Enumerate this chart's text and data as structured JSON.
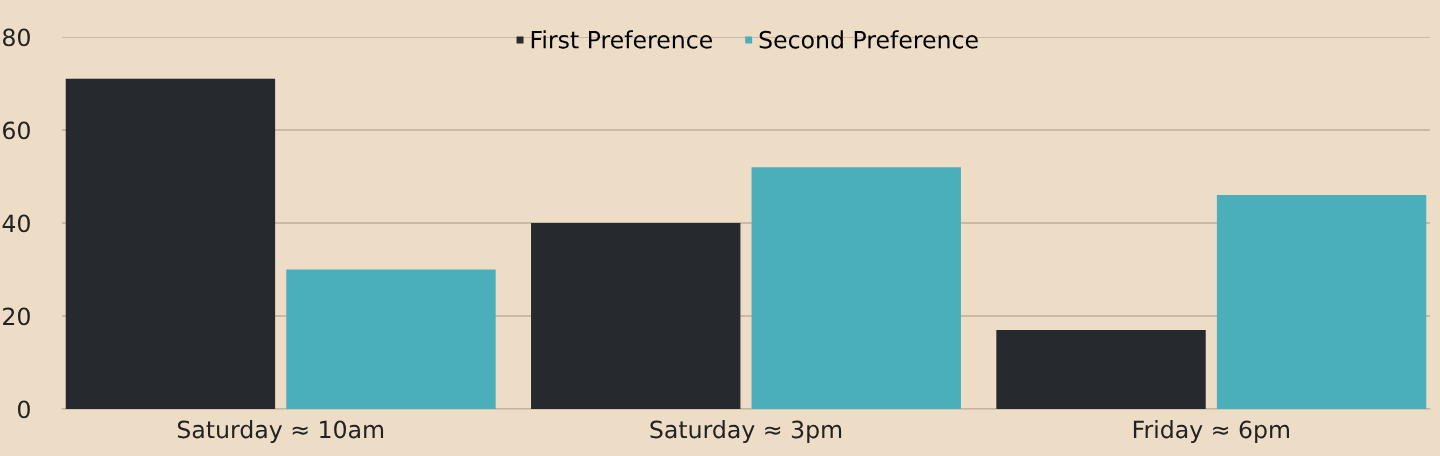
{
  "chart_data": {
    "type": "bar",
    "categories": [
      "Saturday ≈ 10am",
      "Saturday ≈ 3pm",
      "Friday ≈ 6pm"
    ],
    "series": [
      {
        "name": "First Preference",
        "color": "#262a2e",
        "values": [
          71,
          40,
          17
        ]
      },
      {
        "name": "Second Preference",
        "color": "#4aafb8",
        "values": [
          30,
          52,
          46
        ]
      }
    ],
    "ylim": [
      0,
      80
    ],
    "yticks": [
      0,
      20,
      40,
      60,
      80
    ],
    "grid": "y",
    "legend": "top"
  }
}
